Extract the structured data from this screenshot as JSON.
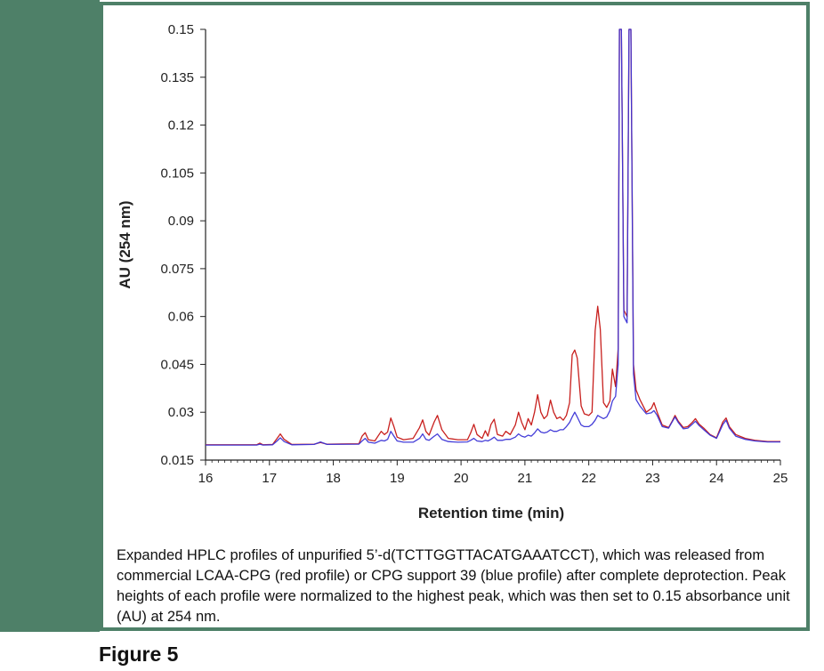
{
  "figure": {
    "caption": "Expanded HPLC profiles of unpurified 5’-d(TCTTGGTTACATGAAATCCT), which was released from commercial LCAA-CPG (red profile) or CPG support 39 (blue profile) after complete deprotection. Peak heights of each profile were normalized to the highest peak, which was then set to 0.15 absorbance unit (AU) at 254 nm.",
    "label": "Figure 5"
  },
  "colors": {
    "frame": "#4e8068",
    "red_series": "#c8201e",
    "blue_series": "#3a33d6"
  },
  "chart_data": {
    "type": "line",
    "xlabel": "Retention time  (min)",
    "ylabel": "AU (254 nm)",
    "xlim": [
      16,
      25
    ],
    "ylim": [
      0.015,
      0.15
    ],
    "x_ticks": [
      "16",
      "17",
      "18",
      "19",
      "20",
      "21",
      "22",
      "23",
      "24",
      "25"
    ],
    "y_ticks": [
      "0.015",
      "0.03",
      "0.045",
      "0.06",
      "0.075",
      "0.09",
      "0.105",
      "0.12",
      "0.135",
      "0.15"
    ],
    "grid": false,
    "series": [
      {
        "color": "#c8201e",
        "points": [
          [
            16.0,
            0.0198
          ],
          [
            16.8,
            0.0198
          ],
          [
            16.85,
            0.0203
          ],
          [
            16.9,
            0.0198
          ],
          [
            17.05,
            0.0199
          ],
          [
            17.12,
            0.0218
          ],
          [
            17.17,
            0.0232
          ],
          [
            17.23,
            0.0215
          ],
          [
            17.35,
            0.0199
          ],
          [
            17.7,
            0.02
          ],
          [
            17.8,
            0.0205
          ],
          [
            17.9,
            0.02
          ],
          [
            18.4,
            0.0201
          ],
          [
            18.45,
            0.0225
          ],
          [
            18.5,
            0.0236
          ],
          [
            18.55,
            0.0214
          ],
          [
            18.65,
            0.021
          ],
          [
            18.75,
            0.024
          ],
          [
            18.8,
            0.023
          ],
          [
            18.85,
            0.0238
          ],
          [
            18.9,
            0.0282
          ],
          [
            18.95,
            0.0255
          ],
          [
            19.0,
            0.0222
          ],
          [
            19.1,
            0.0214
          ],
          [
            19.25,
            0.0218
          ],
          [
            19.35,
            0.0252
          ],
          [
            19.4,
            0.0276
          ],
          [
            19.45,
            0.024
          ],
          [
            19.5,
            0.0228
          ],
          [
            19.58,
            0.027
          ],
          [
            19.63,
            0.029
          ],
          [
            19.7,
            0.0245
          ],
          [
            19.8,
            0.0218
          ],
          [
            19.95,
            0.0214
          ],
          [
            20.1,
            0.0214
          ],
          [
            20.15,
            0.0235
          ],
          [
            20.2,
            0.0262
          ],
          [
            20.25,
            0.023
          ],
          [
            20.33,
            0.0218
          ],
          [
            20.38,
            0.0242
          ],
          [
            20.42,
            0.0225
          ],
          [
            20.47,
            0.0262
          ],
          [
            20.52,
            0.0278
          ],
          [
            20.57,
            0.023
          ],
          [
            20.65,
            0.0225
          ],
          [
            20.7,
            0.024
          ],
          [
            20.77,
            0.023
          ],
          [
            20.85,
            0.026
          ],
          [
            20.9,
            0.03
          ],
          [
            20.95,
            0.0268
          ],
          [
            21.0,
            0.0245
          ],
          [
            21.05,
            0.028
          ],
          [
            21.1,
            0.026
          ],
          [
            21.15,
            0.03
          ],
          [
            21.2,
            0.0355
          ],
          [
            21.25,
            0.03
          ],
          [
            21.3,
            0.028
          ],
          [
            21.35,
            0.029
          ],
          [
            21.4,
            0.0338
          ],
          [
            21.45,
            0.03
          ],
          [
            21.5,
            0.028
          ],
          [
            21.55,
            0.0285
          ],
          [
            21.6,
            0.0275
          ],
          [
            21.65,
            0.029
          ],
          [
            21.7,
            0.033
          ],
          [
            21.74,
            0.048
          ],
          [
            21.78,
            0.0495
          ],
          [
            21.82,
            0.047
          ],
          [
            21.88,
            0.032
          ],
          [
            21.93,
            0.0295
          ],
          [
            22.0,
            0.029
          ],
          [
            22.05,
            0.03
          ],
          [
            22.1,
            0.0555
          ],
          [
            22.14,
            0.0632
          ],
          [
            22.18,
            0.056
          ],
          [
            22.23,
            0.033
          ],
          [
            22.28,
            0.0315
          ],
          [
            22.33,
            0.0335
          ],
          [
            22.37,
            0.0435
          ],
          [
            22.42,
            0.038
          ],
          [
            22.46,
            0.05
          ],
          [
            22.48,
            0.15
          ],
          [
            22.51,
            0.15
          ],
          [
            22.55,
            0.062
          ],
          [
            22.6,
            0.06
          ],
          [
            22.63,
            0.15
          ],
          [
            22.66,
            0.15
          ],
          [
            22.7,
            0.045
          ],
          [
            22.74,
            0.037
          ],
          [
            22.8,
            0.034
          ],
          [
            22.9,
            0.03
          ],
          [
            22.98,
            0.0312
          ],
          [
            23.02,
            0.033
          ],
          [
            23.07,
            0.03
          ],
          [
            23.15,
            0.026
          ],
          [
            23.25,
            0.0252
          ],
          [
            23.3,
            0.027
          ],
          [
            23.35,
            0.029
          ],
          [
            23.4,
            0.0272
          ],
          [
            23.48,
            0.0252
          ],
          [
            23.55,
            0.0255
          ],
          [
            23.62,
            0.0268
          ],
          [
            23.67,
            0.028
          ],
          [
            23.73,
            0.0262
          ],
          [
            23.8,
            0.025
          ],
          [
            23.9,
            0.023
          ],
          [
            24.0,
            0.022
          ],
          [
            24.1,
            0.027
          ],
          [
            24.15,
            0.0282
          ],
          [
            24.2,
            0.0255
          ],
          [
            24.3,
            0.023
          ],
          [
            24.45,
            0.0218
          ],
          [
            24.6,
            0.0212
          ],
          [
            24.8,
            0.0208
          ],
          [
            25.0,
            0.0208
          ]
        ]
      },
      {
        "color": "#3a33d6",
        "points": [
          [
            16.0,
            0.0197
          ],
          [
            16.8,
            0.0197
          ],
          [
            16.85,
            0.02
          ],
          [
            16.9,
            0.0197
          ],
          [
            17.05,
            0.0198
          ],
          [
            17.12,
            0.021
          ],
          [
            17.17,
            0.022
          ],
          [
            17.23,
            0.0208
          ],
          [
            17.35,
            0.0198
          ],
          [
            17.7,
            0.0199
          ],
          [
            17.8,
            0.0207
          ],
          [
            17.9,
            0.0199
          ],
          [
            18.4,
            0.02
          ],
          [
            18.45,
            0.021
          ],
          [
            18.5,
            0.0218
          ],
          [
            18.55,
            0.0206
          ],
          [
            18.65,
            0.0203
          ],
          [
            18.75,
            0.0212
          ],
          [
            18.8,
            0.021
          ],
          [
            18.85,
            0.0215
          ],
          [
            18.9,
            0.024
          ],
          [
            18.95,
            0.0225
          ],
          [
            19.0,
            0.021
          ],
          [
            19.1,
            0.0206
          ],
          [
            19.25,
            0.0206
          ],
          [
            19.35,
            0.0218
          ],
          [
            19.4,
            0.0232
          ],
          [
            19.45,
            0.0215
          ],
          [
            19.5,
            0.0212
          ],
          [
            19.58,
            0.0225
          ],
          [
            19.63,
            0.0232
          ],
          [
            19.7,
            0.0215
          ],
          [
            19.8,
            0.0208
          ],
          [
            19.95,
            0.0206
          ],
          [
            20.1,
            0.0207
          ],
          [
            20.15,
            0.0212
          ],
          [
            20.2,
            0.0218
          ],
          [
            20.25,
            0.021
          ],
          [
            20.33,
            0.0208
          ],
          [
            20.38,
            0.0212
          ],
          [
            20.42,
            0.021
          ],
          [
            20.47,
            0.0215
          ],
          [
            20.52,
            0.0222
          ],
          [
            20.57,
            0.0212
          ],
          [
            20.65,
            0.0212
          ],
          [
            20.7,
            0.0215
          ],
          [
            20.77,
            0.0215
          ],
          [
            20.85,
            0.0222
          ],
          [
            20.9,
            0.0232
          ],
          [
            20.95,
            0.0225
          ],
          [
            21.0,
            0.0222
          ],
          [
            21.05,
            0.0228
          ],
          [
            21.1,
            0.0225
          ],
          [
            21.15,
            0.0235
          ],
          [
            21.2,
            0.0248
          ],
          [
            21.25,
            0.0238
          ],
          [
            21.3,
            0.0235
          ],
          [
            21.35,
            0.0238
          ],
          [
            21.4,
            0.0245
          ],
          [
            21.45,
            0.024
          ],
          [
            21.5,
            0.024
          ],
          [
            21.55,
            0.0245
          ],
          [
            21.6,
            0.0245
          ],
          [
            21.65,
            0.0255
          ],
          [
            21.7,
            0.0268
          ],
          [
            21.74,
            0.0285
          ],
          [
            21.78,
            0.03
          ],
          [
            21.82,
            0.0285
          ],
          [
            21.88,
            0.026
          ],
          [
            21.93,
            0.0255
          ],
          [
            22.0,
            0.0255
          ],
          [
            22.05,
            0.0262
          ],
          [
            22.1,
            0.0275
          ],
          [
            22.14,
            0.029
          ],
          [
            22.18,
            0.0285
          ],
          [
            22.23,
            0.028
          ],
          [
            22.28,
            0.0285
          ],
          [
            22.33,
            0.0305
          ],
          [
            22.37,
            0.0335
          ],
          [
            22.42,
            0.035
          ],
          [
            22.46,
            0.045
          ],
          [
            22.48,
            0.15
          ],
          [
            22.51,
            0.15
          ],
          [
            22.55,
            0.06
          ],
          [
            22.6,
            0.058
          ],
          [
            22.63,
            0.15
          ],
          [
            22.66,
            0.15
          ],
          [
            22.7,
            0.042
          ],
          [
            22.74,
            0.034
          ],
          [
            22.8,
            0.032
          ],
          [
            22.9,
            0.0295
          ],
          [
            22.98,
            0.0298
          ],
          [
            23.02,
            0.0305
          ],
          [
            23.07,
            0.029
          ],
          [
            23.15,
            0.0255
          ],
          [
            23.25,
            0.025
          ],
          [
            23.3,
            0.0268
          ],
          [
            23.35,
            0.0285
          ],
          [
            23.4,
            0.0268
          ],
          [
            23.48,
            0.0248
          ],
          [
            23.55,
            0.025
          ],
          [
            23.62,
            0.0262
          ],
          [
            23.67,
            0.0272
          ],
          [
            23.73,
            0.0258
          ],
          [
            23.8,
            0.0245
          ],
          [
            23.9,
            0.0228
          ],
          [
            24.0,
            0.0218
          ],
          [
            24.1,
            0.0262
          ],
          [
            24.15,
            0.0275
          ],
          [
            24.2,
            0.025
          ],
          [
            24.3,
            0.0225
          ],
          [
            24.45,
            0.0215
          ],
          [
            24.6,
            0.021
          ],
          [
            24.8,
            0.0207
          ],
          [
            25.0,
            0.0207
          ]
        ]
      }
    ]
  }
}
